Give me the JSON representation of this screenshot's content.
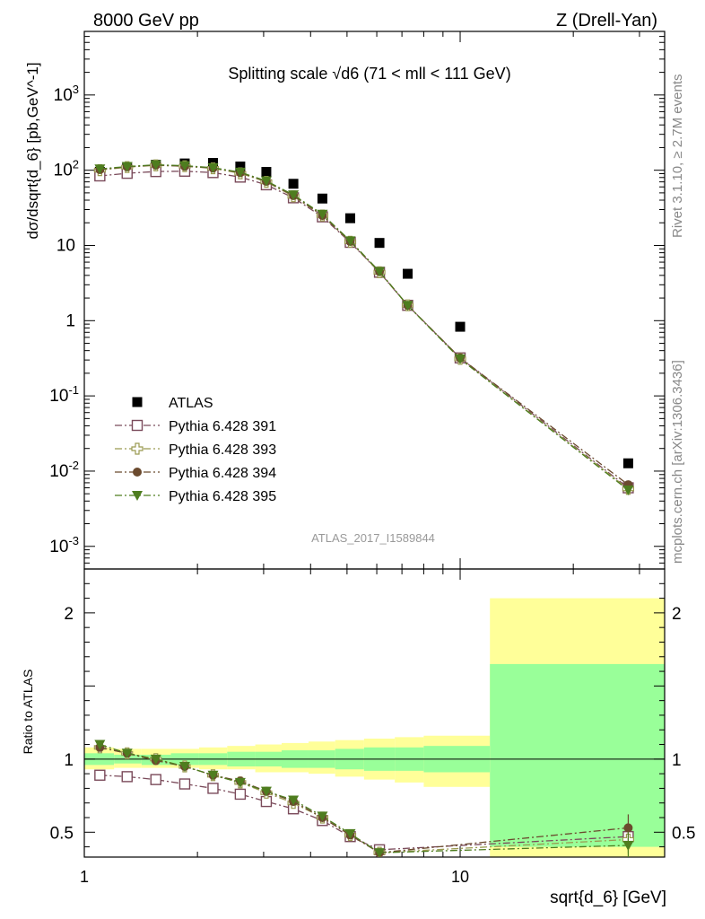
{
  "header": {
    "left": "8000 GeV pp",
    "right": "Z (Drell-Yan)"
  },
  "side_labels": {
    "rivet": "Rivet 3.1.10, ≥ 2.7M events",
    "mcplots": "mcplots.cern.ch [arXiv:1306.3436]"
  },
  "chart_data": [
    {
      "type": "scatter",
      "title": "Splitting scale √d6 (71 < mll < 111 GeV)",
      "ylabel": "dσ/dsqrt{d_6} [pb,GeV^-1]",
      "xlabel": "sqrt{d_6} [GeV]",
      "xscale": "log",
      "yscale": "log",
      "xlim": [
        1,
        35
      ],
      "ylim": [
        0.0005,
        7000
      ],
      "x_ticklabels": [
        "1",
        "10"
      ],
      "y_ticklabels": [
        "10^-3",
        "10^-2",
        "10^-1",
        "1",
        "10",
        "10^2",
        "10^3"
      ],
      "watermark": "ATLAS_2017_I1589844",
      "legend_position": "lower-left",
      "x": [
        1.1,
        1.3,
        1.55,
        1.85,
        2.2,
        2.6,
        3.05,
        3.6,
        4.3,
        5.1,
        6.1,
        7.25,
        10.0,
        28.0
      ],
      "series": [
        {
          "name": "ATLAS",
          "marker": "filled-square",
          "color": "#000000",
          "values": [
            95,
            108,
            118,
            123,
            125,
            112,
            95,
            66,
            42,
            23,
            10.8,
            4.2,
            0.83,
            0.0127
          ]
        },
        {
          "name": "Pythia 6.428 391",
          "marker": "open-square",
          "color": "#7a4a5a",
          "values": [
            84,
            91,
            96,
            97,
            93,
            81,
            64,
            43,
            24,
            11,
            4.4,
            1.6,
            0.32,
            0.006
          ]
        },
        {
          "name": "Pythia 6.428 393",
          "marker": "open-cross",
          "color": "#9a9a50",
          "values": [
            100,
            110,
            116,
            113,
            106,
            91,
            70,
            45,
            25,
            11.2,
            4.4,
            1.6,
            0.31,
            0.0058
          ]
        },
        {
          "name": "Pythia 6.428 394",
          "marker": "filled-circle",
          "color": "#6b4a2e",
          "values": [
            102,
            111,
            117,
            113,
            107,
            93,
            71,
            46,
            25,
            11.3,
            4.5,
            1.6,
            0.32,
            0.0066
          ]
        },
        {
          "name": "Pythia 6.428 395",
          "marker": "filled-triangle",
          "color": "#4e7d1f",
          "values": [
            104,
            112,
            118,
            115,
            108,
            94,
            72,
            47,
            26,
            11.5,
            4.5,
            1.6,
            0.31,
            0.0056
          ]
        }
      ]
    },
    {
      "type": "scatter",
      "ylabel": "Ratio to ATLAS",
      "xlabel": "sqrt{d_6} [GeV]",
      "xscale": "log",
      "xlim": [
        1,
        35
      ],
      "ylim": [
        0.33,
        2.3
      ],
      "y_ticklabels": [
        "0.5",
        "1",
        "2"
      ],
      "reference_line": 1,
      "bands": [
        {
          "x_low": 1.0,
          "x_high": 1.2,
          "yellow": [
            0.93,
            1.08
          ],
          "green": [
            0.96,
            1.04
          ]
        },
        {
          "x_low": 1.2,
          "x_high": 1.42,
          "yellow": [
            0.94,
            1.07
          ],
          "green": [
            0.97,
            1.03
          ]
        },
        {
          "x_low": 1.42,
          "x_high": 1.7,
          "yellow": [
            0.94,
            1.07
          ],
          "green": [
            0.96,
            1.03
          ]
        },
        {
          "x_low": 1.7,
          "x_high": 2.02,
          "yellow": [
            0.94,
            1.07
          ],
          "green": [
            0.96,
            1.04
          ]
        },
        {
          "x_low": 2.02,
          "x_high": 2.4,
          "yellow": [
            0.93,
            1.08
          ],
          "green": [
            0.96,
            1.04
          ]
        },
        {
          "x_low": 2.4,
          "x_high": 2.85,
          "yellow": [
            0.93,
            1.09
          ],
          "green": [
            0.95,
            1.05
          ]
        },
        {
          "x_low": 2.85,
          "x_high": 3.35,
          "yellow": [
            0.91,
            1.1
          ],
          "green": [
            0.95,
            1.05
          ]
        },
        {
          "x_low": 3.35,
          "x_high": 3.95,
          "yellow": [
            0.91,
            1.11
          ],
          "green": [
            0.94,
            1.06
          ]
        },
        {
          "x_low": 3.95,
          "x_high": 4.65,
          "yellow": [
            0.9,
            1.12
          ],
          "green": [
            0.94,
            1.06
          ]
        },
        {
          "x_low": 4.65,
          "x_high": 5.55,
          "yellow": [
            0.88,
            1.13
          ],
          "green": [
            0.93,
            1.07
          ]
        },
        {
          "x_low": 5.55,
          "x_high": 6.7,
          "yellow": [
            0.86,
            1.14
          ],
          "green": [
            0.92,
            1.08
          ]
        },
        {
          "x_low": 6.7,
          "x_high": 8.0,
          "yellow": [
            0.84,
            1.15
          ],
          "green": [
            0.92,
            1.08
          ]
        },
        {
          "x_low": 8.0,
          "x_high": 12.0,
          "yellow": [
            0.81,
            1.16
          ],
          "green": [
            0.91,
            1.09
          ]
        },
        {
          "x_low": 12.0,
          "x_high": 35.0,
          "yellow": [
            0.32,
            2.1
          ],
          "green": [
            0.4,
            1.65
          ]
        }
      ],
      "x": [
        1.1,
        1.3,
        1.55,
        1.85,
        2.2,
        2.6,
        3.05,
        3.6,
        4.3,
        5.1,
        6.1,
        28.0
      ],
      "series": [
        {
          "name": "Pythia 6.428 391",
          "values": [
            0.89,
            0.88,
            0.86,
            0.83,
            0.8,
            0.76,
            0.71,
            0.66,
            0.58,
            0.47,
            0.38,
            0.47
          ]
        },
        {
          "name": "Pythia 6.428 393",
          "values": [
            1.08,
            1.04,
            1.0,
            0.95,
            0.89,
            0.84,
            0.77,
            0.7,
            0.6,
            0.48,
            0.36,
            0.45
          ]
        },
        {
          "name": "Pythia 6.428 394",
          "values": [
            1.08,
            1.04,
            0.99,
            0.95,
            0.89,
            0.85,
            0.78,
            0.71,
            0.6,
            0.48,
            0.36,
            0.53
          ]
        },
        {
          "name": "Pythia 6.428 395",
          "values": [
            1.1,
            1.04,
            1.0,
            0.95,
            0.89,
            0.84,
            0.78,
            0.72,
            0.61,
            0.49,
            0.36,
            0.41
          ]
        }
      ]
    }
  ]
}
